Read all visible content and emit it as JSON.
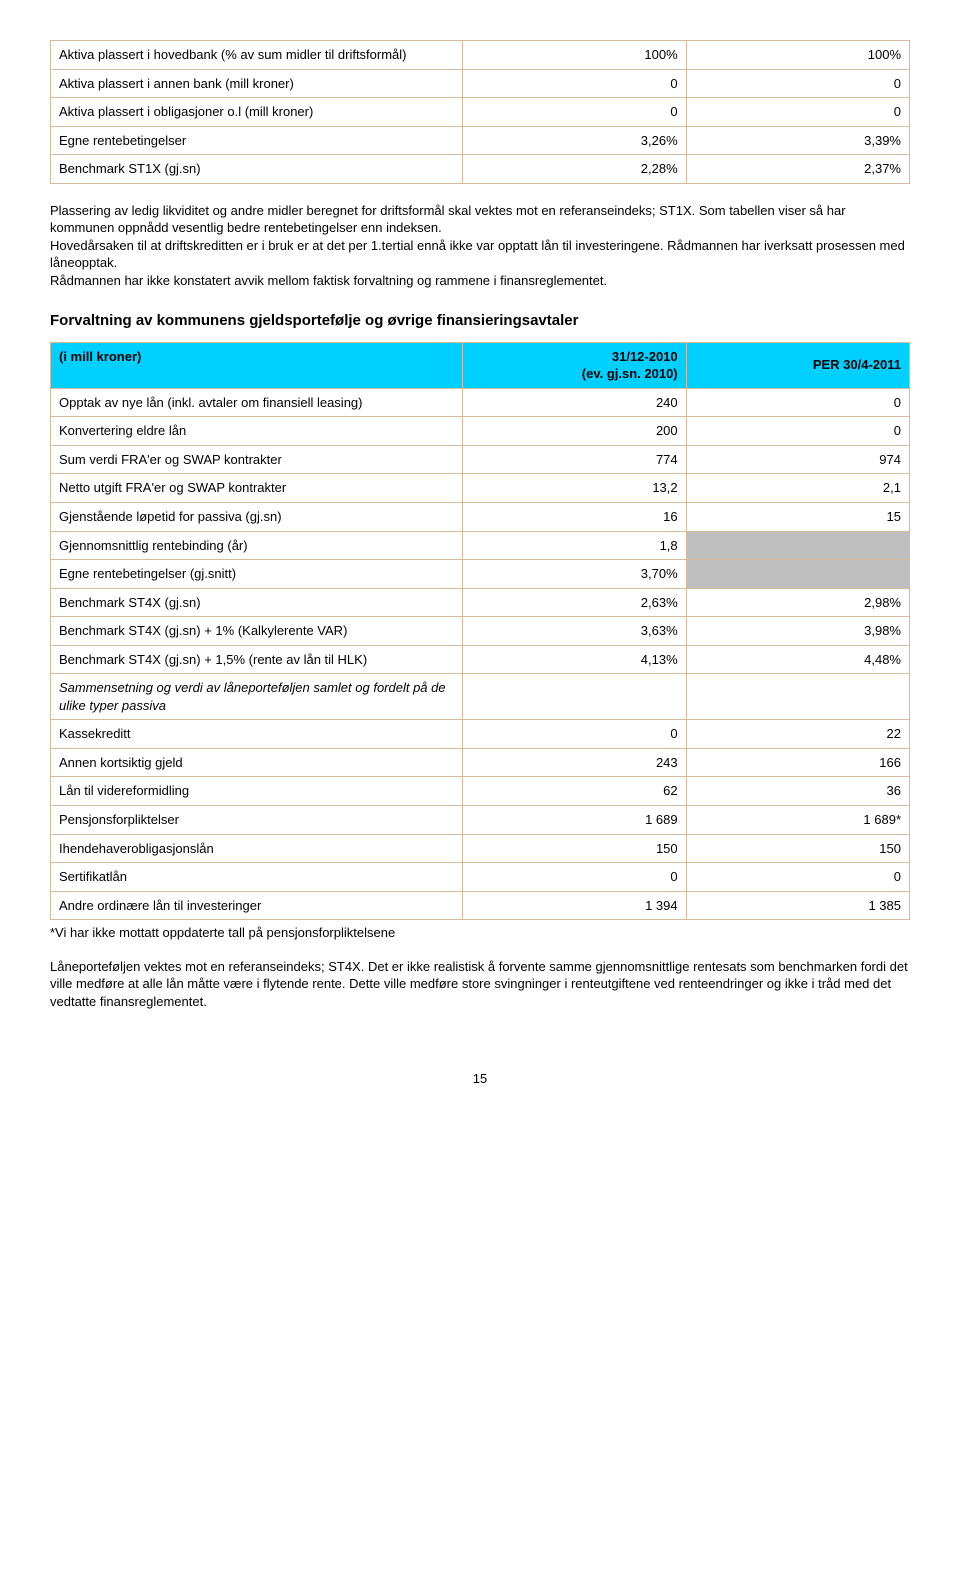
{
  "table1": {
    "rows": [
      {
        "label": "Aktiva plassert i hovedbank (% av sum midler til driftsformål)",
        "v1": "100%",
        "v2": "100%"
      },
      {
        "label": "Aktiva plassert i annen bank (mill kroner)",
        "v1": "0",
        "v2": "0"
      },
      {
        "label": "Aktiva plassert i obligasjoner o.l (mill kroner)",
        "v1": "0",
        "v2": "0"
      },
      {
        "label": "Egne rentebetingelser",
        "v1": "3,26%",
        "v2": "3,39%"
      },
      {
        "label": "Benchmark ST1X (gj.sn)",
        "v1": "2,28%",
        "v2": "2,37%"
      }
    ]
  },
  "para1": "Plassering av ledig likviditet og andre midler beregnet for driftsformål skal vektes mot en referanseindeks; ST1X. Som tabellen viser så har kommunen oppnådd vesentlig bedre rentebetingelser enn indeksen.",
  "para2": "Hovedårsaken til at driftskreditten er i bruk er at det per 1.tertial ennå ikke var opptatt lån til investeringene. Rådmannen har iverksatt prosessen med låneopptak.",
  "para3": "Rådmannen har ikke konstatert avvik mellom faktisk forvaltning og rammene i finansreglementet.",
  "section2_title": "Forvaltning av kommunens gjeldsportefølje og øvrige finansieringsavtaler",
  "table2": {
    "header": {
      "c1": "(i mill kroner)",
      "c2a": "31/12-2010",
      "c2b": "(ev. gj.sn. 2010)",
      "c3": "PER 30/4-2011"
    },
    "rows": [
      {
        "label": "Opptak av nye lån (inkl. avtaler om finansiell leasing)",
        "v1": "240",
        "v2": "0"
      },
      {
        "label": "Konvertering eldre lån",
        "v1": "200",
        "v2": "0"
      },
      {
        "label": "Sum verdi FRA'er og SWAP kontrakter",
        "v1": "774",
        "v2": "974"
      },
      {
        "label": "Netto utgift FRA'er og SWAP kontrakter",
        "v1": "13,2",
        "v2": "2,1"
      },
      {
        "label": "Gjenstående løpetid for passiva (gj.sn)",
        "v1": "16",
        "v2": "15"
      },
      {
        "label": "Gjennomsnittlig rentebinding (år)",
        "v1": "1,8",
        "v2": "",
        "grey2": true
      },
      {
        "label": "Egne rentebetingelser (gj.snitt)",
        "v1": "3,70%",
        "v2": "",
        "grey2": true
      },
      {
        "label": "Benchmark ST4X (gj.sn)",
        "v1": "2,63%",
        "v2": "2,98%"
      },
      {
        "label": "Benchmark ST4X (gj.sn) + 1% (Kalkylerente VAR)",
        "v1": "3,63%",
        "v2": "3,98%"
      },
      {
        "label": "Benchmark ST4X (gj.sn) + 1,5% (rente av lån til HLK)",
        "v1": "4,13%",
        "v2": "4,48%"
      }
    ],
    "subsection_label": "Sammensetning og verdi av låneporteføljen samlet og fordelt på de ulike typer passiva",
    "rows2": [
      {
        "label": "Kassekreditt",
        "v1": "0",
        "v2": "22"
      },
      {
        "label": "Annen kortsiktig gjeld",
        "v1": "243",
        "v2": "166"
      },
      {
        "label": "Lån til videreformidling",
        "v1": "62",
        "v2": "36"
      },
      {
        "label": "Pensjonsforpliktelser",
        "v1": "1 689",
        "v2": "1 689*"
      },
      {
        "label": "Ihendehaverobligasjonslån",
        "v1": "150",
        "v2": "150"
      },
      {
        "label": "Sertifikatlån",
        "v1": "0",
        "v2": "0"
      },
      {
        "label": "Andre ordinære lån til investeringer",
        "v1": "1 394",
        "v2": "1 385"
      }
    ]
  },
  "footnote": "*Vi har ikke mottatt oppdaterte tall på pensjonsforpliktelsene",
  "para4": "Låneporteføljen vektes mot en referanseindeks; ST4X. Det er ikke realistisk å forvente samme gjennomsnittlige rentesats som benchmarken fordi det ville medføre at alle lån måtte være i flytende rente. Dette ville medføre store svingninger i renteutgiftene ved renteendringer og ikke i tråd med det vedtatte finansreglementet.",
  "page_number": "15"
}
